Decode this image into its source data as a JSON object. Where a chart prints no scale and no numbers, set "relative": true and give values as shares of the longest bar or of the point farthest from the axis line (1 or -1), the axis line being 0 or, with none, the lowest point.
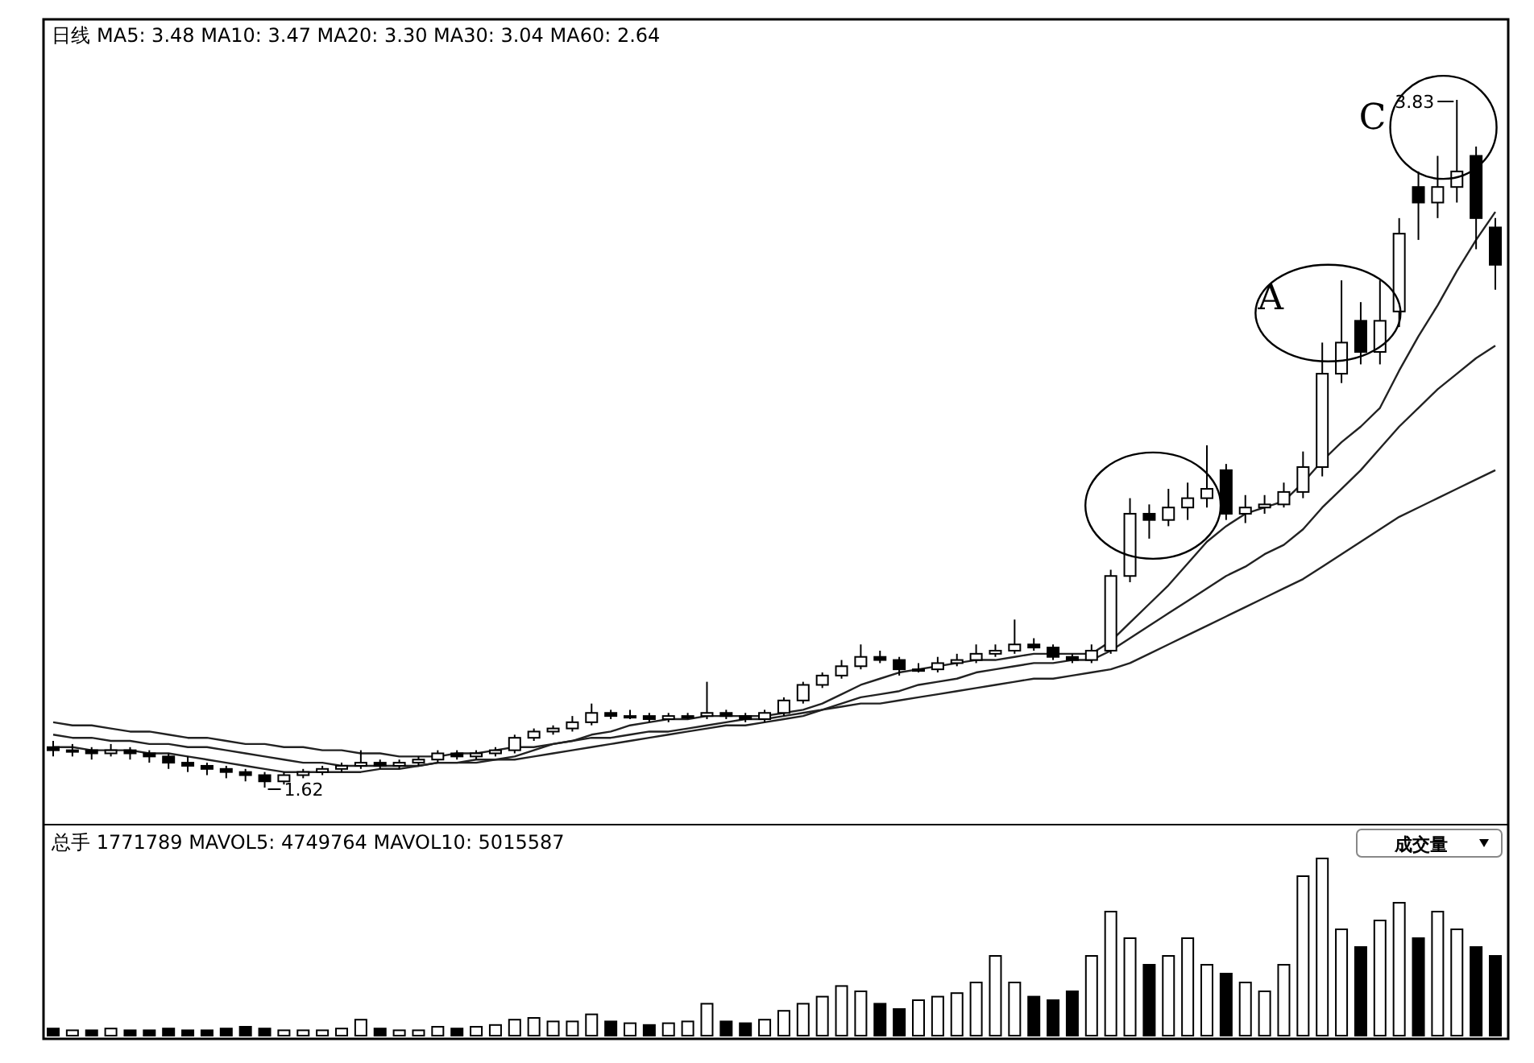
{
  "chart_data": [
    {
      "type": "candlestick",
      "categories": [
        null,
        null,
        null,
        null,
        null,
        null,
        null,
        null,
        null,
        null,
        null,
        null,
        null,
        null,
        null,
        null,
        null,
        null,
        null,
        null,
        null,
        null,
        null,
        null,
        null,
        null,
        null,
        null,
        null,
        null,
        null,
        null,
        null,
        null,
        null,
        null,
        null,
        null,
        null,
        null,
        null,
        null,
        null,
        null,
        null,
        null,
        null,
        null,
        null,
        null,
        null,
        null,
        null,
        null,
        null,
        null,
        null,
        null,
        null,
        null,
        null,
        null,
        null,
        null,
        null,
        null,
        null,
        null,
        null,
        null,
        null,
        null,
        null,
        null,
        null,
        null
      ],
      "ohlc": [
        [
          1.75,
          1.77,
          1.72,
          1.74
        ],
        [
          1.74,
          1.76,
          1.72,
          1.74
        ],
        [
          1.74,
          1.75,
          1.71,
          1.73
        ],
        [
          1.73,
          1.76,
          1.72,
          1.74
        ],
        [
          1.74,
          1.75,
          1.71,
          1.73
        ],
        [
          1.73,
          1.74,
          1.7,
          1.72
        ],
        [
          1.72,
          1.73,
          1.68,
          1.7
        ],
        [
          1.7,
          1.72,
          1.67,
          1.69
        ],
        [
          1.69,
          1.7,
          1.66,
          1.68
        ],
        [
          1.68,
          1.69,
          1.65,
          1.67
        ],
        [
          1.67,
          1.68,
          1.64,
          1.66
        ],
        [
          1.66,
          1.67,
          1.62,
          1.64
        ],
        [
          1.64,
          1.67,
          1.63,
          1.66
        ],
        [
          1.66,
          1.68,
          1.65,
          1.67
        ],
        [
          1.67,
          1.69,
          1.66,
          1.68
        ],
        [
          1.68,
          1.7,
          1.67,
          1.69
        ],
        [
          1.69,
          1.74,
          1.68,
          1.7
        ],
        [
          1.7,
          1.71,
          1.68,
          1.69
        ],
        [
          1.69,
          1.71,
          1.68,
          1.7
        ],
        [
          1.7,
          1.72,
          1.69,
          1.71
        ],
        [
          1.71,
          1.74,
          1.7,
          1.73
        ],
        [
          1.73,
          1.74,
          1.71,
          1.72
        ],
        [
          1.72,
          1.74,
          1.71,
          1.73
        ],
        [
          1.73,
          1.75,
          1.72,
          1.74
        ],
        [
          1.74,
          1.79,
          1.73,
          1.78
        ],
        [
          1.78,
          1.81,
          1.77,
          1.8
        ],
        [
          1.8,
          1.82,
          1.79,
          1.81
        ],
        [
          1.81,
          1.85,
          1.8,
          1.83
        ],
        [
          1.83,
          1.89,
          1.82,
          1.86
        ],
        [
          1.86,
          1.87,
          1.84,
          1.85
        ],
        [
          1.85,
          1.87,
          1.84,
          1.85
        ],
        [
          1.85,
          1.86,
          1.83,
          1.84
        ],
        [
          1.84,
          1.86,
          1.83,
          1.85
        ],
        [
          1.85,
          1.86,
          1.84,
          1.85
        ],
        [
          1.85,
          1.96,
          1.84,
          1.86
        ],
        [
          1.86,
          1.87,
          1.84,
          1.85
        ],
        [
          1.85,
          1.86,
          1.83,
          1.84
        ],
        [
          1.84,
          1.87,
          1.83,
          1.86
        ],
        [
          1.86,
          1.91,
          1.85,
          1.9
        ],
        [
          1.9,
          1.96,
          1.89,
          1.95
        ],
        [
          1.95,
          1.99,
          1.94,
          1.98
        ],
        [
          1.98,
          2.03,
          1.97,
          2.01
        ],
        [
          2.01,
          2.08,
          2.0,
          2.04
        ],
        [
          2.04,
          2.06,
          2.02,
          2.03
        ],
        [
          2.03,
          2.04,
          1.98,
          2.0
        ],
        [
          2.0,
          2.02,
          1.99,
          2.0
        ],
        [
          2.0,
          2.04,
          1.99,
          2.02
        ],
        [
          2.02,
          2.05,
          2.01,
          2.03
        ],
        [
          2.03,
          2.08,
          2.02,
          2.05
        ],
        [
          2.05,
          2.08,
          2.04,
          2.06
        ],
        [
          2.06,
          2.16,
          2.05,
          2.08
        ],
        [
          2.08,
          2.1,
          2.06,
          2.07
        ],
        [
          2.07,
          2.08,
          2.03,
          2.04
        ],
        [
          2.04,
          2.05,
          2.02,
          2.03
        ],
        [
          2.03,
          2.08,
          2.02,
          2.06
        ],
        [
          2.06,
          2.32,
          2.05,
          2.3
        ],
        [
          2.3,
          2.55,
          2.28,
          2.5
        ],
        [
          2.5,
          2.53,
          2.42,
          2.48
        ],
        [
          2.48,
          2.58,
          2.46,
          2.52
        ],
        [
          2.52,
          2.6,
          2.48,
          2.55
        ],
        [
          2.55,
          2.72,
          2.52,
          2.58
        ],
        [
          2.64,
          2.66,
          2.48,
          2.5
        ],
        [
          2.5,
          2.56,
          2.47,
          2.52
        ],
        [
          2.52,
          2.56,
          2.5,
          2.53
        ],
        [
          2.53,
          2.6,
          2.52,
          2.57
        ],
        [
          2.57,
          2.7,
          2.55,
          2.65
        ],
        [
          2.65,
          3.05,
          2.62,
          2.95
        ],
        [
          2.95,
          3.25,
          2.92,
          3.05
        ],
        [
          3.12,
          3.18,
          2.98,
          3.02
        ],
        [
          3.02,
          3.25,
          2.98,
          3.12
        ],
        [
          3.15,
          3.45,
          3.1,
          3.4
        ],
        [
          3.55,
          3.6,
          3.38,
          3.5
        ],
        [
          3.5,
          3.65,
          3.45,
          3.55
        ],
        [
          3.55,
          3.83,
          3.5,
          3.6
        ],
        [
          3.65,
          3.68,
          3.35,
          3.45
        ],
        [
          3.42,
          3.45,
          3.22,
          3.3
        ]
      ],
      "series": [
        {
          "type": "line",
          "color": "#222222",
          "values": [
            1.75,
            1.75,
            1.74,
            1.74,
            1.74,
            1.73,
            1.73,
            1.72,
            1.71,
            1.7,
            1.69,
            1.68,
            1.67,
            1.67,
            1.67,
            1.67,
            1.67,
            1.68,
            1.68,
            1.69,
            1.7,
            1.7,
            1.71,
            1.71,
            1.72,
            1.74,
            1.76,
            1.77,
            1.79,
            1.8,
            1.82,
            1.83,
            1.84,
            1.84,
            1.85,
            1.85,
            1.85,
            1.85,
            1.86,
            1.87,
            1.89,
            1.92,
            1.95,
            1.97,
            1.99,
            2.0,
            2.01,
            2.02,
            2.03,
            2.03,
            2.04,
            2.05,
            2.05,
            2.05,
            2.05,
            2.09,
            2.15,
            2.21,
            2.27,
            2.34,
            2.41,
            2.46,
            2.5,
            2.52,
            2.54,
            2.6,
            2.67,
            2.73,
            2.78,
            2.84,
            2.96,
            3.07,
            3.17,
            3.28,
            3.38,
            3.47
          ]
        },
        {
          "type": "line",
          "color": "#222222",
          "values": [
            1.79,
            1.78,
            1.78,
            1.77,
            1.77,
            1.76,
            1.76,
            1.75,
            1.75,
            1.74,
            1.73,
            1.72,
            1.71,
            1.7,
            1.7,
            1.69,
            1.69,
            1.69,
            1.69,
            1.69,
            1.7,
            1.7,
            1.7,
            1.71,
            1.71,
            1.72,
            1.73,
            1.74,
            1.75,
            1.76,
            1.77,
            1.78,
            1.79,
            1.8,
            1.81,
            1.82,
            1.82,
            1.83,
            1.84,
            1.85,
            1.87,
            1.89,
            1.91,
            1.92,
            1.93,
            1.95,
            1.96,
            1.97,
            1.99,
            2.0,
            2.01,
            2.02,
            2.02,
            2.03,
            2.03,
            2.06,
            2.1,
            2.14,
            2.18,
            2.22,
            2.26,
            2.3,
            2.33,
            2.37,
            2.4,
            2.45,
            2.52,
            2.58,
            2.64,
            2.71,
            2.78,
            2.84,
            2.9,
            2.95,
            3.0,
            3.04
          ]
        },
        {
          "type": "line",
          "color": "#222222",
          "values": [
            1.83,
            1.82,
            1.82,
            1.81,
            1.8,
            1.8,
            1.79,
            1.78,
            1.78,
            1.77,
            1.76,
            1.76,
            1.75,
            1.75,
            1.74,
            1.74,
            1.73,
            1.73,
            1.72,
            1.72,
            1.72,
            1.73,
            1.73,
            1.74,
            1.75,
            1.75,
            1.76,
            1.77,
            1.78,
            1.78,
            1.79,
            1.8,
            1.8,
            1.81,
            1.82,
            1.83,
            1.84,
            1.84,
            1.85,
            1.86,
            1.87,
            1.88,
            1.89,
            1.89,
            1.9,
            1.91,
            1.92,
            1.93,
            1.94,
            1.95,
            1.96,
            1.97,
            1.97,
            1.98,
            1.99,
            2.0,
            2.02,
            2.05,
            2.08,
            2.11,
            2.14,
            2.17,
            2.2,
            2.23,
            2.26,
            2.29,
            2.33,
            2.37,
            2.41,
            2.45,
            2.49,
            2.52,
            2.55,
            2.58,
            2.61,
            2.64
          ]
        }
      ],
      "annotations": [
        "日线",
        "MA5: 3.48 MA10: 3.47 MA20: 3.30 MA30: 3.04 MA60: 2.64",
        "3.83",
        "1.62",
        "A",
        "C"
      ]
    },
    {
      "type": "bar",
      "relative": true,
      "categories": [
        null,
        null,
        null,
        null,
        null,
        null,
        null,
        null,
        null,
        null,
        null,
        null,
        null,
        null,
        null,
        null,
        null,
        null,
        null,
        null,
        null,
        null,
        null,
        null,
        null,
        null,
        null,
        null,
        null,
        null,
        null,
        null,
        null,
        null,
        null,
        null,
        null,
        null,
        null,
        null,
        null,
        null,
        null,
        null,
        null,
        null,
        null,
        null,
        null,
        null,
        null,
        null,
        null,
        null,
        null,
        null,
        null,
        null,
        null,
        null,
        null,
        null,
        null,
        null,
        null,
        null,
        null,
        null,
        null,
        null,
        null,
        null,
        null,
        null,
        null,
        null
      ],
      "values": [
        0.04,
        0.03,
        0.03,
        0.04,
        0.03,
        0.03,
        0.04,
        0.03,
        0.03,
        0.04,
        0.05,
        0.04,
        0.03,
        0.03,
        0.03,
        0.04,
        0.09,
        0.04,
        0.03,
        0.03,
        0.05,
        0.04,
        0.05,
        0.06,
        0.09,
        0.1,
        0.08,
        0.08,
        0.12,
        0.08,
        0.07,
        0.06,
        0.07,
        0.08,
        0.18,
        0.08,
        0.07,
        0.09,
        0.14,
        0.18,
        0.22,
        0.28,
        0.25,
        0.18,
        0.15,
        0.2,
        0.22,
        0.24,
        0.3,
        0.45,
        0.3,
        0.22,
        0.2,
        0.25,
        0.45,
        0.7,
        0.55,
        0.4,
        0.45,
        0.55,
        0.4,
        0.35,
        0.3,
        0.25,
        0.4,
        0.9,
        1.0,
        0.6,
        0.5,
        0.65,
        0.75,
        0.55,
        0.7,
        0.6,
        0.5,
        0.45
      ],
      "colors": [
        "#000000",
        "#ffffff",
        "#000000",
        "#ffffff",
        "#000000",
        "#000000",
        "#000000",
        "#000000",
        "#000000",
        "#000000",
        "#000000",
        "#000000",
        "#ffffff",
        "#ffffff",
        "#ffffff",
        "#ffffff",
        "#ffffff",
        "#000000",
        "#ffffff",
        "#ffffff",
        "#ffffff",
        "#000000",
        "#ffffff",
        "#ffffff",
        "#ffffff",
        "#ffffff",
        "#ffffff",
        "#ffffff",
        "#ffffff",
        "#000000",
        "#ffffff",
        "#000000",
        "#ffffff",
        "#ffffff",
        "#ffffff",
        "#000000",
        "#000000",
        "#ffffff",
        "#ffffff",
        "#ffffff",
        "#ffffff",
        "#ffffff",
        "#ffffff",
        "#000000",
        "#000000",
        "#ffffff",
        "#ffffff",
        "#ffffff",
        "#ffffff",
        "#ffffff",
        "#ffffff",
        "#000000",
        "#000000",
        "#000000",
        "#ffffff",
        "#ffffff",
        "#ffffff",
        "#000000",
        "#ffffff",
        "#ffffff",
        "#ffffff",
        "#000000",
        "#ffffff",
        "#ffffff",
        "#ffffff",
        "#ffffff",
        "#ffffff",
        "#ffffff",
        "#000000",
        "#ffffff",
        "#ffffff",
        "#000000",
        "#ffffff",
        "#ffffff",
        "#000000",
        "#000000"
      ],
      "annotations": [
        "总手 1771789 MAVOL5: 4749764 MAVOL10: 5015587",
        "成交量"
      ]
    }
  ]
}
